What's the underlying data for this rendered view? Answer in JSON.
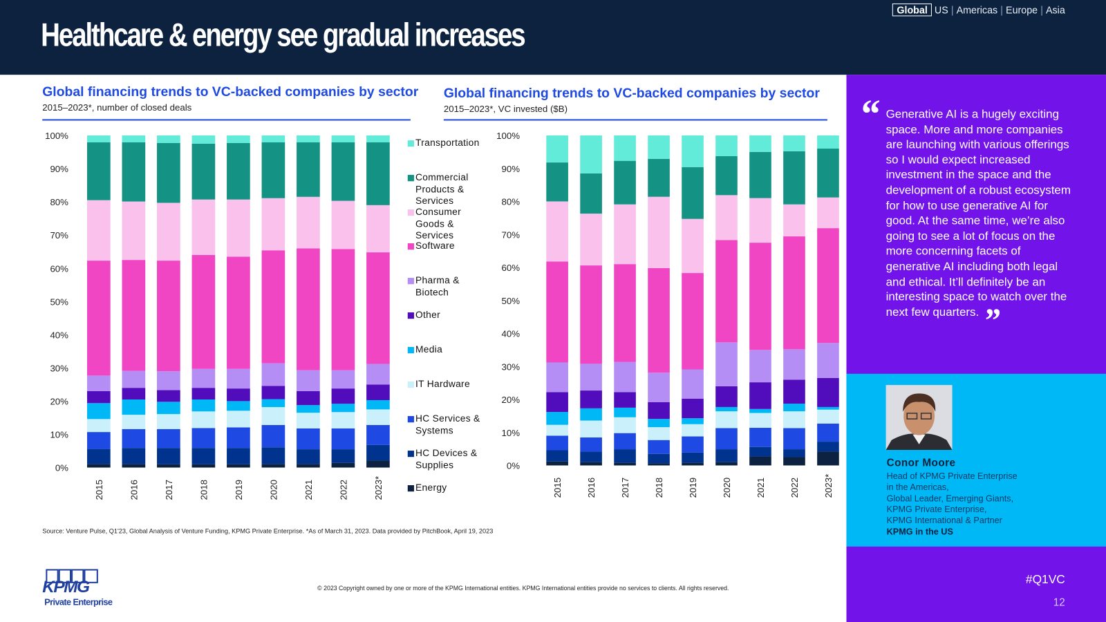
{
  "header": {
    "title": "Healthcare & energy see gradual increases",
    "regions": [
      {
        "label": "Global",
        "selected": true
      },
      {
        "label": "US",
        "selected": false
      },
      {
        "label": "Americas",
        "selected": false
      },
      {
        "label": "Europe",
        "selected": false
      },
      {
        "label": "Asia",
        "selected": false
      }
    ]
  },
  "colors": {
    "header_bg": "#0c223f",
    "accent_blue": "#1e49e2",
    "panel_purple": "#7213ea",
    "panel_cyan": "#00b8f5"
  },
  "chart_data": [
    {
      "type": "bar",
      "stacked": true,
      "normalized": true,
      "title": "Global financing trends to VC-backed companies by sector",
      "subtitle": "2015–2023*, number of closed deals",
      "categories": [
        "2015",
        "2016",
        "2017",
        "2018",
        "2019",
        "2020",
        "2021",
        "2022",
        "2023*"
      ],
      "ylim": [
        0,
        100
      ],
      "yticks": [
        "0%",
        "10%",
        "20%",
        "30%",
        "40%",
        "50%",
        "60%",
        "70%",
        "80%",
        "90%",
        "100%"
      ],
      "grid": false,
      "legend": "right",
      "series": [
        {
          "name": "Energy",
          "color": "#0d2240",
          "values": [
            1.1,
            1.1,
            1.0,
            1.0,
            1.0,
            1.1,
            1.1,
            1.4,
            2.1
          ]
        },
        {
          "name": "HC Devices & Supplies",
          "color": "#00338d",
          "values": [
            4.5,
            4.8,
            4.9,
            4.9,
            4.9,
            5.0,
            4.4,
            4.1,
            4.7
          ]
        },
        {
          "name": "HC Services & Systems",
          "color": "#1e49e2",
          "values": [
            5.1,
            5.7,
            5.7,
            6.0,
            6.2,
            6.7,
            6.3,
            6.3,
            6.0
          ]
        },
        {
          "name": "IT Hardware",
          "color": "#c9f0fb",
          "values": [
            3.9,
            4.3,
            4.5,
            5.0,
            5.0,
            5.4,
            4.7,
            4.9,
            4.7
          ]
        },
        {
          "name": "Media",
          "color": "#00b8f5",
          "values": [
            4.8,
            4.6,
            3.7,
            3.6,
            2.9,
            2.4,
            2.3,
            2.5,
            2.8
          ]
        },
        {
          "name": "Other",
          "color": "#510dbc",
          "values": [
            3.6,
            3.5,
            3.5,
            3.5,
            3.8,
            4.0,
            4.2,
            4.6,
            4.7
          ]
        },
        {
          "name": "Pharma & Biotech",
          "color": "#b48ef4",
          "values": [
            4.7,
            5.1,
            5.7,
            5.7,
            5.9,
            6.8,
            6.3,
            5.5,
            6.2
          ]
        },
        {
          "name": "Software",
          "color": "#f046c4",
          "values": [
            34.6,
            33.4,
            33.3,
            34.3,
            33.8,
            34.0,
            36.7,
            36.5,
            33.6
          ]
        },
        {
          "name": "Consumer Goods & Services",
          "color": "#f9c1ec",
          "values": [
            18.2,
            17.6,
            17.4,
            16.7,
            17.2,
            15.7,
            15.5,
            14.5,
            14.2
          ]
        },
        {
          "name": "Commercial Products & Services",
          "color": "#149385",
          "values": [
            17.4,
            17.8,
            18.0,
            16.8,
            17.0,
            16.8,
            16.4,
            17.6,
            18.9
          ]
        },
        {
          "name": "Transportation",
          "color": "#63ebda",
          "values": [
            2.1,
            2.1,
            2.3,
            2.5,
            2.3,
            2.1,
            2.1,
            2.1,
            2.1
          ]
        }
      ]
    },
    {
      "type": "bar",
      "stacked": true,
      "normalized": true,
      "title": "Global financing trends to VC-backed companies by sector",
      "subtitle": "2015–2023*, VC invested ($B)",
      "categories": [
        "2015",
        "2016",
        "2017",
        "2018",
        "2019",
        "2020",
        "2021",
        "2022",
        "2023*"
      ],
      "ylim": [
        0,
        100
      ],
      "yticks": [
        "0%",
        "10%",
        "20%",
        "30%",
        "40%",
        "50%",
        "60%",
        "70%",
        "80%",
        "90%",
        "100%"
      ],
      "grid": false,
      "series": [
        {
          "name": "Energy",
          "color": "#0d2240",
          "values": [
            1.2,
            1.0,
            0.8,
            0.6,
            0.8,
            1.0,
            2.7,
            2.5,
            4.2
          ]
        },
        {
          "name": "HC Devices & Supplies",
          "color": "#00338d",
          "values": [
            3.4,
            3.2,
            4.1,
            2.9,
            3.1,
            3.9,
            2.9,
            2.4,
            3.0
          ]
        },
        {
          "name": "HC Services & Systems",
          "color": "#1e49e2",
          "values": [
            4.4,
            4.3,
            4.9,
            4.2,
            4.9,
            6.4,
            5.8,
            6.4,
            5.5
          ]
        },
        {
          "name": "IT Hardware",
          "color": "#c9f0fb",
          "values": [
            3.3,
            5.1,
            4.8,
            3.9,
            3.7,
            5.1,
            4.5,
            5.1,
            4.2
          ]
        },
        {
          "name": "Media",
          "color": "#00b8f5",
          "values": [
            3.9,
            3.7,
            2.9,
            2.5,
            1.8,
            1.3,
            1.2,
            2.3,
            0.8
          ]
        },
        {
          "name": "Other",
          "color": "#510dbc",
          "values": [
            6.0,
            5.4,
            4.7,
            5.1,
            5.9,
            6.3,
            8.1,
            7.3,
            8.8
          ]
        },
        {
          "name": "Pharma & Biotech",
          "color": "#b48ef4",
          "values": [
            9.0,
            8.1,
            9.2,
            8.9,
            8.9,
            13.3,
            9.8,
            9.2,
            10.6
          ]
        },
        {
          "name": "Software",
          "color": "#f046c4",
          "values": [
            30.6,
            29.8,
            29.6,
            31.7,
            29.2,
            31.0,
            32.5,
            34.2,
            34.8
          ]
        },
        {
          "name": "Consumer Goods & Services",
          "color": "#f9c1ec",
          "values": [
            18.2,
            15.7,
            18.1,
            21.6,
            16.4,
            13.6,
            13.5,
            9.7,
            9.3
          ]
        },
        {
          "name": "Commercial Products & Services",
          "color": "#149385",
          "values": [
            11.8,
            12.2,
            13.2,
            11.5,
            15.7,
            11.8,
            14.0,
            16.1,
            14.8
          ]
        },
        {
          "name": "Transportation",
          "color": "#63ebda",
          "values": [
            8.2,
            11.5,
            7.7,
            7.1,
            9.6,
            6.3,
            5.0,
            4.8,
            4.0
          ]
        }
      ]
    }
  ],
  "legend": [
    "Transportation",
    "Commercial Products & Services",
    "Consumer Goods & Services",
    "Software",
    "Pharma & Biotech",
    "Other",
    "Media",
    "IT Hardware",
    "HC Services & Systems",
    "HC Devices & Supplies",
    "Energy"
  ],
  "source": "Source: Venture Pulse, Q1'23, Global Analysis of Venture Funding, KPMG Private Enterprise. *As of March 31, 2023. Data provided by PitchBook, April 19, 2023",
  "copyright": "© 2023 Copyright owned by one or more of the KPMG International entities. KPMG International entities provide no services to clients. All rights reserved.",
  "logo": {
    "brand": "KPMG",
    "sub": "Private Enterprise"
  },
  "sidebar": {
    "quote": "Generative AI is a hugely exciting space. More and more companies are launching with various offerings so I would expect increased investment in the space and the development of a robust ecosystem for how to use generative AI for good. At the same time, we’re also going to see a lot of focus on the more concerning facets of generative AI including both legal and ethical. It’ll definitely be an interesting space to watch over the next few quarters.",
    "name": "Conor Moore",
    "title_lines": [
      "Head of KPMG Private Enterprise",
      "in the Americas,",
      "Global Leader, Emerging Giants,",
      "KPMG Private Enterprise,",
      "KPMG International & Partner"
    ],
    "org": "KPMG in the US",
    "hashtag": "#Q1VC",
    "page_number": "12"
  }
}
